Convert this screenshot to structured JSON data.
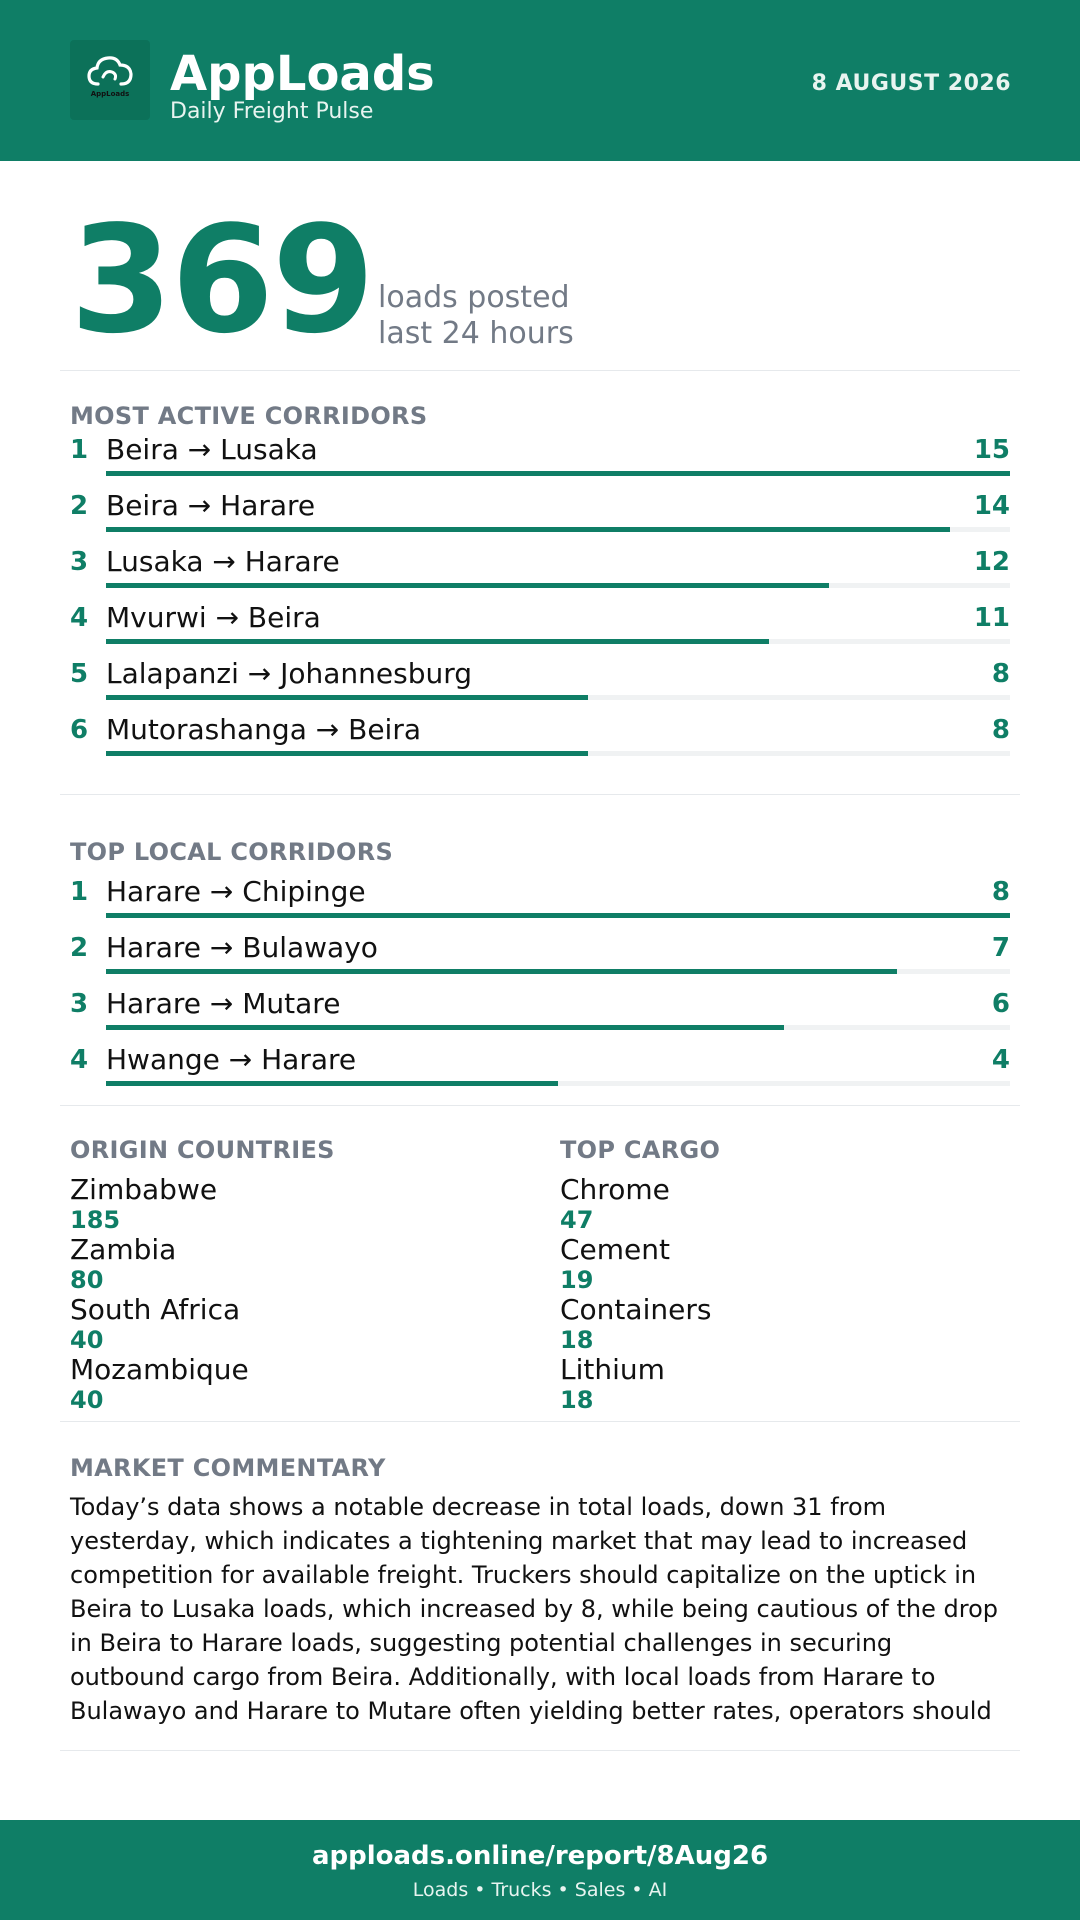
{
  "header": {
    "logo_text": "AppLoads",
    "brand": "AppLoads",
    "tagline": "Daily Freight Pulse",
    "date": "8 AUGUST 2026"
  },
  "hero": {
    "value": "369",
    "line1": "loads posted",
    "line2": "last 24 hours"
  },
  "most_active": {
    "title": "MOST ACTIVE CORRIDORS",
    "items": [
      {
        "rank": "1",
        "route": "Beira → Lusaka",
        "count": "15",
        "value": 15
      },
      {
        "rank": "2",
        "route": "Beira → Harare",
        "count": "14",
        "value": 14
      },
      {
        "rank": "3",
        "route": "Lusaka → Harare",
        "count": "12",
        "value": 12
      },
      {
        "rank": "4",
        "route": "Mvurwi → Beira",
        "count": "11",
        "value": 11
      },
      {
        "rank": "5",
        "route": "Lalapanzi → Johannesburg",
        "count": "8",
        "value": 8
      },
      {
        "rank": "6",
        "route": "Mutorashanga → Beira",
        "count": "8",
        "value": 8
      }
    ]
  },
  "top_local": {
    "title": "TOP LOCAL CORRIDORS",
    "items": [
      {
        "rank": "1",
        "route": "Harare → Chipinge",
        "count": "8",
        "value": 8
      },
      {
        "rank": "2",
        "route": "Harare → Bulawayo",
        "count": "7",
        "value": 7
      },
      {
        "rank": "3",
        "route": "Harare → Mutare",
        "count": "6",
        "value": 6
      },
      {
        "rank": "4",
        "route": "Hwange → Harare",
        "count": "4",
        "value": 4
      }
    ]
  },
  "origin_countries": {
    "title": "ORIGIN COUNTRIES",
    "items": [
      {
        "name": "Zimbabwe",
        "value": "185"
      },
      {
        "name": "Zambia",
        "value": "80"
      },
      {
        "name": "South Africa",
        "value": "40"
      },
      {
        "name": "Mozambique",
        "value": "40"
      }
    ]
  },
  "top_cargo": {
    "title": "TOP CARGO",
    "items": [
      {
        "name": "Chrome",
        "value": "47"
      },
      {
        "name": "Cement",
        "value": "19"
      },
      {
        "name": "Containers",
        "value": "18"
      },
      {
        "name": "Lithium",
        "value": "18"
      }
    ]
  },
  "commentary": {
    "title": "MARKET COMMENTARY",
    "text": "Today’s data shows a notable decrease in total loads, down 31 from yesterday, which indicates a tightening market that may lead to increased competition for available freight. Truckers should capitalize on the uptick in Beira to Lusaka loads, which increased by 8, while being cautious of the drop in Beira to Harare loads, suggesting potential challenges in securing outbound cargo from Beira. Additionally, with local loads from Harare to Bulawayo and Harare to Mutare often yielding better rates, operators should"
  },
  "footer": {
    "url": "apploads.online/report/8Aug26",
    "tagline": "Loads • Trucks • Sales • AI"
  },
  "colors": {
    "brand_green": "#0f7e66",
    "muted_gray": "#727a86"
  }
}
